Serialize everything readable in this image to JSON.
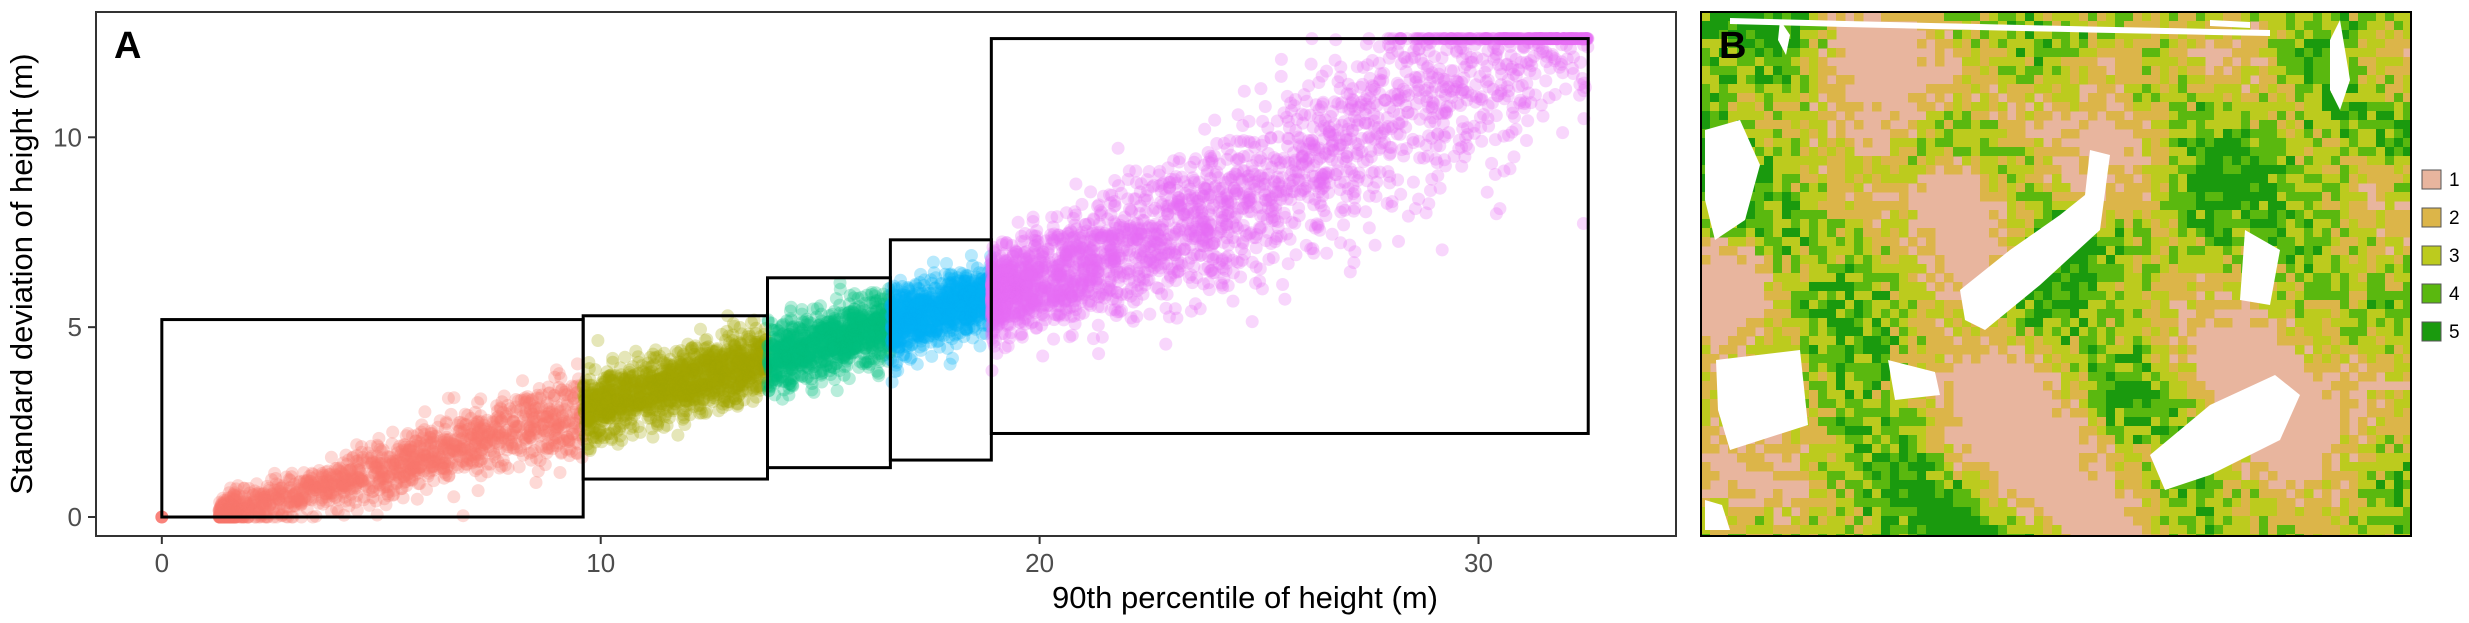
{
  "panel_a_label": "A",
  "panel_b_label": "B",
  "chart_data": {
    "type": "scatter",
    "xlabel": "90th percentile of height (m)",
    "ylabel": "Standard deviation of height (m)",
    "xlim": [
      -1.5,
      34.5
    ],
    "ylim": [
      -0.5,
      13.3
    ],
    "x_ticks": [
      0,
      10,
      20,
      30
    ],
    "y_ticks": [
      0,
      5,
      10
    ],
    "grid": false,
    "classes": [
      {
        "name": "1",
        "color": "#F8766D",
        "x_range": [
          0,
          9.6
        ],
        "sd_range": [
          0.0,
          5.2
        ]
      },
      {
        "name": "2",
        "color": "#A3A500",
        "x_range": [
          9.6,
          13.8
        ],
        "sd_range": [
          1.0,
          5.3
        ]
      },
      {
        "name": "3",
        "color": "#00BF7D",
        "x_range": [
          13.8,
          16.6
        ],
        "sd_range": [
          1.3,
          6.3
        ]
      },
      {
        "name": "4",
        "color": "#00B0F6",
        "x_range": [
          16.6,
          18.9
        ],
        "sd_range": [
          1.5,
          7.3
        ]
      },
      {
        "name": "5",
        "color": "#E76BF3",
        "x_range": [
          18.9,
          32.5
        ],
        "sd_range": [
          2.2,
          12.6
        ]
      }
    ]
  },
  "map": {
    "legend_items": [
      {
        "label": "1",
        "color": "#E8B59E"
      },
      {
        "label": "2",
        "color": "#DCB549"
      },
      {
        "label": "3",
        "color": "#BCCB1E"
      },
      {
        "label": "4",
        "color": "#5AB80F"
      },
      {
        "label": "5",
        "color": "#1A9A0E"
      }
    ]
  }
}
